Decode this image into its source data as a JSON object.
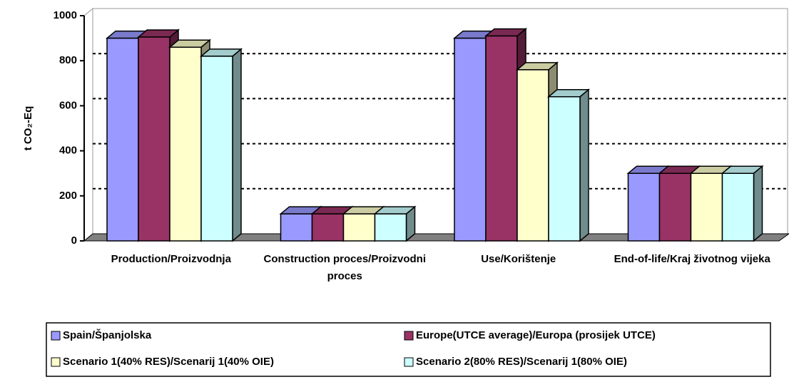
{
  "chart_data": {
    "type": "bar3d",
    "ylabel": "t CO₂-Eq",
    "categories": [
      "Production/Proizvodnja",
      "Construction proces/Proizvodni proces",
      "Use/Korištenje",
      "End-of-life/Kraj životnog vijeka"
    ],
    "series": [
      {
        "name": "Spain/Španjolska",
        "color": "#9999ff",
        "values": [
          900,
          120,
          900,
          300
        ]
      },
      {
        "name": "Europe(UTCE average)/Europa (prosijek UTCE)",
        "color": "#993366",
        "values": [
          905,
          120,
          910,
          300
        ]
      },
      {
        "name": "Scenario 1(40% RES)/Scenarij 1(40% OIE)",
        "color": "#ffffcc",
        "values": [
          860,
          120,
          760,
          300
        ]
      },
      {
        "name": "Scenario 2(80% RES)/Scenarij 1(80% OIE)",
        "color": "#ccffff",
        "values": [
          820,
          120,
          640,
          300
        ]
      }
    ],
    "ylim": [
      0,
      1000
    ],
    "yticks": [
      0,
      200,
      400,
      600,
      800,
      1000
    ],
    "grid": true,
    "legend": "bottom"
  }
}
